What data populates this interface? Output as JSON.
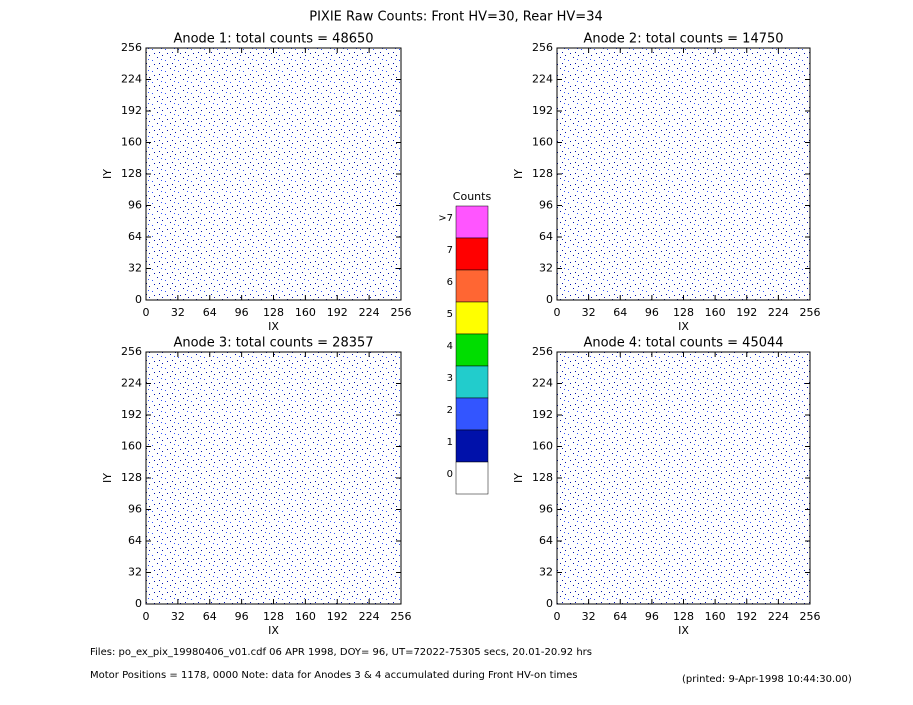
{
  "title": "PIXIE Raw Counts:  Front HV=30, Rear HV=34",
  "chart_data": [
    {
      "type": "heatmap",
      "title": "Anode 1: total counts = 48650",
      "x_label": "IX",
      "y_label": "IY",
      "xlim": [
        0,
        256
      ],
      "ylim": [
        0,
        256
      ],
      "xticks": [
        0,
        32,
        64,
        96,
        128,
        160,
        192,
        224,
        256
      ],
      "yticks": [
        0,
        32,
        64,
        96,
        128,
        160,
        192,
        224,
        256
      ]
    },
    {
      "type": "heatmap",
      "title": "Anode 2: total counts = 14750",
      "x_label": "IX",
      "y_label": "IY",
      "xlim": [
        0,
        256
      ],
      "ylim": [
        0,
        256
      ],
      "xticks": [
        0,
        32,
        64,
        96,
        128,
        160,
        192,
        224,
        256
      ],
      "yticks": [
        0,
        32,
        64,
        96,
        128,
        160,
        192,
        224,
        256
      ]
    },
    {
      "type": "heatmap",
      "title": "Anode 3: total counts = 28357",
      "x_label": "IX",
      "y_label": "IY",
      "xlim": [
        0,
        256
      ],
      "ylim": [
        0,
        256
      ],
      "xticks": [
        0,
        32,
        64,
        96,
        128,
        160,
        192,
        224,
        256
      ],
      "yticks": [
        0,
        32,
        64,
        96,
        128,
        160,
        192,
        224,
        256
      ]
    },
    {
      "type": "heatmap",
      "title": "Anode 4: total counts = 45044",
      "x_label": "IX",
      "y_label": "IY",
      "xlim": [
        0,
        256
      ],
      "ylim": [
        0,
        256
      ],
      "xticks": [
        0,
        32,
        64,
        96,
        128,
        160,
        192,
        224,
        256
      ],
      "yticks": [
        0,
        32,
        64,
        96,
        128,
        160,
        192,
        224,
        256
      ]
    },
    {
      "type": "colorbar",
      "title": "Counts",
      "categories": [
        ">7",
        "7",
        "6",
        "5",
        "4",
        "3",
        "2",
        "1",
        "0"
      ],
      "colors": [
        "#ff55ff",
        "#ff0000",
        "#ff6633",
        "#ffff00",
        "#00dd00",
        "#22cccc",
        "#3355ff",
        "#0011aa",
        "#ffffff"
      ]
    }
  ],
  "footer": {
    "files": "Files: po_ex_pix_19980406_v01.cdf    06 APR 1998, DOY= 96, UT=72022-75305 secs, 20.01-20.92 hrs",
    "motor": "Motor Positions = 1178, 0000   Note: data for Anodes 3 & 4 accumulated during Front HV-on times",
    "printed": "(printed:  9-Apr-1998 10:44:30.00)"
  }
}
